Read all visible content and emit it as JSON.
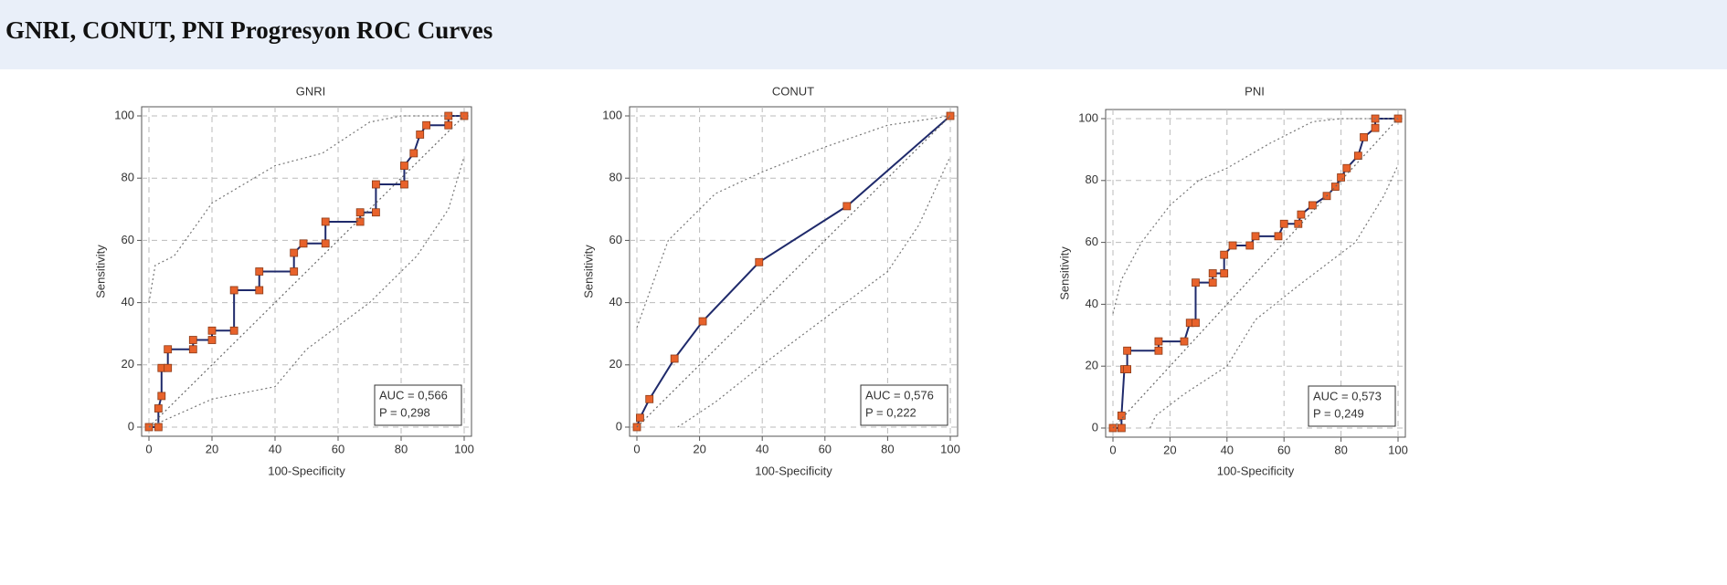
{
  "header": {
    "title": "GNRI, CONUT, PNI Progresyon ROC Curves"
  },
  "chart_data": [
    {
      "type": "line",
      "title": "GNRI",
      "x_label": "100-Specificity",
      "y_label": "Sensitivity",
      "xlim": [
        0,
        100
      ],
      "ylim": [
        0,
        100
      ],
      "xticks": [
        0,
        20,
        40,
        60,
        80,
        100
      ],
      "yticks": [
        0,
        20,
        40,
        60,
        80,
        100
      ],
      "grid": true,
      "annotations": [
        "AUC = 0,566",
        "P = 0,298"
      ],
      "series": [
        {
          "color": "#1f2a6b",
          "style": "solid",
          "marker": true,
          "x": [
            0,
            3,
            3,
            4,
            4,
            6,
            6,
            14,
            14,
            20,
            20,
            27,
            27,
            35,
            35,
            46,
            46,
            49,
            56,
            56,
            67,
            67,
            72,
            72,
            81,
            81,
            84,
            86,
            88,
            95,
            95,
            100
          ],
          "values": [
            0,
            0,
            6,
            10,
            19,
            19,
            25,
            25,
            28,
            28,
            31,
            31,
            44,
            44,
            50,
            50,
            56,
            59,
            59,
            66,
            66,
            69,
            69,
            78,
            78,
            84,
            88,
            94,
            97,
            97,
            100,
            100
          ]
        },
        {
          "color": "#666666",
          "style": "dotted",
          "marker": false,
          "x": [
            0,
            100
          ],
          "values": [
            0,
            100
          ]
        },
        {
          "color": "#777777",
          "style": "dotted",
          "marker": false,
          "x": [
            0,
            2,
            8,
            20,
            40,
            55,
            70,
            80,
            100
          ],
          "values": [
            40,
            52,
            55,
            72,
            84,
            88,
            98,
            100,
            100
          ]
        },
        {
          "color": "#777777",
          "style": "dotted",
          "marker": false,
          "x": [
            0,
            20,
            40,
            50,
            70,
            85,
            95,
            100
          ],
          "values": [
            0,
            9,
            13,
            25,
            40,
            55,
            70,
            87
          ]
        }
      ]
    },
    {
      "type": "line",
      "title": "CONUT",
      "x_label": "100-Specificity",
      "y_label": "Sensitivity",
      "xlim": [
        0,
        100
      ],
      "ylim": [
        0,
        100
      ],
      "xticks": [
        0,
        20,
        40,
        60,
        80,
        100
      ],
      "yticks": [
        0,
        20,
        40,
        60,
        80,
        100
      ],
      "grid": true,
      "annotations": [
        "AUC = 0,576",
        "P = 0,222"
      ],
      "series": [
        {
          "color": "#1f2a6b",
          "style": "solid",
          "marker": true,
          "x": [
            0,
            1,
            4,
            12,
            21,
            39,
            67,
            100
          ],
          "values": [
            0,
            3,
            9,
            22,
            34,
            53,
            71,
            100
          ]
        },
        {
          "color": "#666666",
          "style": "dotted",
          "marker": false,
          "x": [
            0,
            100
          ],
          "values": [
            0,
            100
          ]
        },
        {
          "color": "#777777",
          "style": "dotted",
          "marker": false,
          "x": [
            0,
            10,
            25,
            40,
            60,
            80,
            100
          ],
          "values": [
            32,
            60,
            75,
            82,
            90,
            97,
            100
          ]
        },
        {
          "color": "#777777",
          "style": "dotted",
          "marker": false,
          "x": [
            13,
            25,
            40,
            60,
            80,
            90,
            100
          ],
          "values": [
            0,
            8,
            20,
            35,
            50,
            65,
            87
          ]
        }
      ]
    },
    {
      "type": "line",
      "title": "PNI",
      "x_label": "100-Specificity",
      "y_label": "Sensitivity",
      "xlim": [
        0,
        100
      ],
      "ylim": [
        0,
        100
      ],
      "xticks": [
        0,
        20,
        40,
        60,
        80,
        100
      ],
      "yticks": [
        0,
        20,
        40,
        60,
        80,
        100
      ],
      "grid": true,
      "annotations": [
        "AUC = 0,573",
        "P = 0,249"
      ],
      "series": [
        {
          "color": "#1f2a6b",
          "style": "solid",
          "marker": true,
          "x": [
            0,
            3,
            3,
            4,
            5,
            5,
            16,
            16,
            25,
            27,
            29,
            29,
            35,
            35,
            39,
            39,
            42,
            48,
            50,
            58,
            60,
            65,
            66,
            70,
            75,
            78,
            80,
            82,
            86,
            88,
            92,
            92,
            100
          ],
          "values": [
            0,
            0,
            4,
            19,
            19,
            25,
            25,
            28,
            28,
            34,
            34,
            47,
            47,
            50,
            50,
            56,
            59,
            59,
            62,
            62,
            66,
            66,
            69,
            72,
            75,
            78,
            81,
            84,
            88,
            94,
            97,
            100,
            100
          ]
        },
        {
          "color": "#666666",
          "style": "dotted",
          "marker": false,
          "x": [
            0,
            100
          ],
          "values": [
            0,
            100
          ]
        },
        {
          "color": "#777777",
          "style": "dotted",
          "marker": false,
          "x": [
            0,
            3,
            10,
            20,
            30,
            40,
            55,
            70,
            80,
            100
          ],
          "values": [
            37,
            48,
            60,
            72,
            80,
            84,
            92,
            99,
            100,
            100
          ]
        },
        {
          "color": "#777777",
          "style": "dotted",
          "marker": false,
          "x": [
            13,
            15,
            25,
            40,
            50,
            65,
            85,
            95,
            100
          ],
          "values": [
            0,
            4,
            11,
            20,
            35,
            46,
            60,
            75,
            85
          ]
        }
      ]
    }
  ]
}
